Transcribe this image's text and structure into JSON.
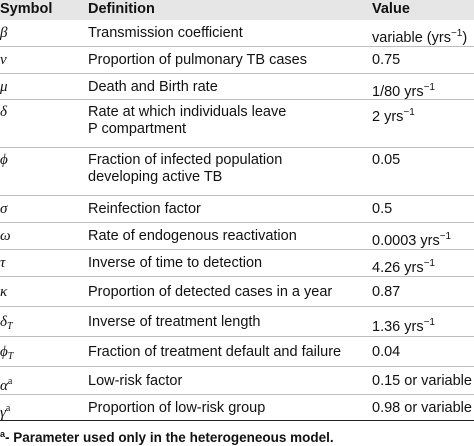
{
  "header": {
    "symbol": "Symbol",
    "definition": "Definition",
    "value": "Value"
  },
  "rows": [
    {
      "symbol": "β",
      "sub": "",
      "sup": "",
      "def1": "Transmission coefficient",
      "def2": "",
      "value": "variable (yrs",
      "value_sup": "−1",
      "value_tail": ")"
    },
    {
      "symbol": "ν",
      "sub": "",
      "sup": "",
      "def1": "Proportion of pulmonary TB cases",
      "def2": "",
      "value": "0.75",
      "value_sup": "",
      "value_tail": ""
    },
    {
      "symbol": "μ",
      "sub": "",
      "sup": "",
      "def1": "Death and Birth rate",
      "def2": "",
      "value": "1/80 yrs",
      "value_sup": "−1",
      "value_tail": ""
    },
    {
      "symbol": "δ",
      "sub": "",
      "sup": "",
      "def1": "Rate at which individuals leave",
      "def2": "P compartment",
      "value": "2 yrs",
      "value_sup": "−1",
      "value_tail": ""
    },
    {
      "symbol": "ϕ",
      "sub": "",
      "sup": "",
      "def1": "Fraction of infected population",
      "def2": "developing active TB",
      "value": "0.05",
      "value_sup": "",
      "value_tail": ""
    },
    {
      "symbol": "σ",
      "sub": "",
      "sup": "",
      "def1": "Reinfection factor",
      "def2": "",
      "value": "0.5",
      "value_sup": "",
      "value_tail": ""
    },
    {
      "symbol": "ω",
      "sub": "",
      "sup": "",
      "def1": "Rate of endogenous reactivation",
      "def2": "",
      "value": "0.0003 yrs",
      "value_sup": "−1",
      "value_tail": ""
    },
    {
      "symbol": "τ",
      "sub": "",
      "sup": "",
      "def1": "Inverse of time to detection",
      "def2": "",
      "value": "4.26 yrs",
      "value_sup": "−1",
      "value_tail": ""
    },
    {
      "symbol": "κ",
      "sub": "",
      "sup": "",
      "def1": "Proportion of detected cases in a year",
      "def2": "",
      "value": "0.87",
      "value_sup": "",
      "value_tail": ""
    },
    {
      "symbol": "δ",
      "sub": "T",
      "sup": "",
      "def1": "Inverse of treatment length",
      "def2": "",
      "value": "1.36 yrs",
      "value_sup": "−1",
      "value_tail": ""
    },
    {
      "symbol": "ϕ",
      "sub": "T",
      "sup": "",
      "def1": "Fraction of treatment default and failure",
      "def2": "",
      "value": "0.04",
      "value_sup": "",
      "value_tail": ""
    },
    {
      "symbol": "α",
      "sub": "",
      "sup": "a",
      "def1": "Low-risk factor",
      "def2": "",
      "value": "0.15 or variable",
      "value_sup": "",
      "value_tail": ""
    },
    {
      "symbol": "γ",
      "sub": "",
      "sup": "a",
      "def1": "Proportion of low-risk group",
      "def2": "",
      "value": "0.98 or variable",
      "value_sup": "",
      "value_tail": ""
    }
  ],
  "footnote": {
    "mark": "a",
    "text": "- Parameter used only in the heterogeneous model."
  }
}
